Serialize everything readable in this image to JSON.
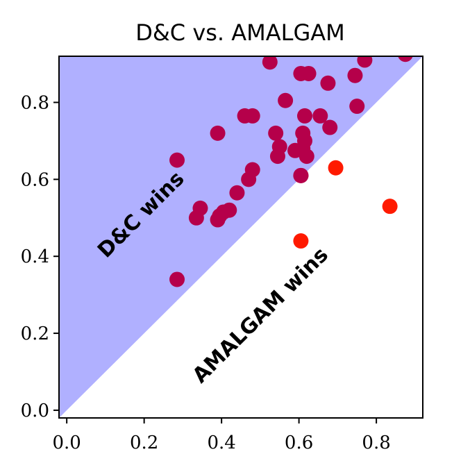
{
  "chart_data": {
    "type": "scatter",
    "title": "D&C vs. AMALGAM",
    "xlabel": "",
    "ylabel": "",
    "xlim": [
      -0.02,
      0.92
    ],
    "ylim": [
      -0.02,
      0.92
    ],
    "xticks": [
      "0.0",
      "0.2",
      "0.4",
      "0.6",
      "0.8"
    ],
    "yticks": [
      "0.0",
      "0.2",
      "0.4",
      "0.6",
      "0.8"
    ],
    "grid": false,
    "region_labels": {
      "upper": "D&C wins",
      "lower": "AMALGAM wins"
    },
    "colors": {
      "upper_fill": "#b0b0ff",
      "upper_points": "#b5004a",
      "lower_points": "#ff1a00"
    },
    "points": [
      {
        "x": 0.285,
        "y": 0.34
      },
      {
        "x": 0.285,
        "y": 0.65
      },
      {
        "x": 0.335,
        "y": 0.5
      },
      {
        "x": 0.345,
        "y": 0.525
      },
      {
        "x": 0.39,
        "y": 0.495
      },
      {
        "x": 0.39,
        "y": 0.72
      },
      {
        "x": 0.395,
        "y": 0.505
      },
      {
        "x": 0.405,
        "y": 0.515
      },
      {
        "x": 0.42,
        "y": 0.52
      },
      {
        "x": 0.44,
        "y": 0.565
      },
      {
        "x": 0.46,
        "y": 0.765
      },
      {
        "x": 0.47,
        "y": 0.6
      },
      {
        "x": 0.48,
        "y": 0.625
      },
      {
        "x": 0.48,
        "y": 0.765
      },
      {
        "x": 0.525,
        "y": 0.905
      },
      {
        "x": 0.54,
        "y": 0.72
      },
      {
        "x": 0.545,
        "y": 0.66
      },
      {
        "x": 0.55,
        "y": 0.685
      },
      {
        "x": 0.565,
        "y": 0.805
      },
      {
        "x": 0.59,
        "y": 0.675
      },
      {
        "x": 0.605,
        "y": 0.61
      },
      {
        "x": 0.605,
        "y": 0.875
      },
      {
        "x": 0.61,
        "y": 0.68
      },
      {
        "x": 0.61,
        "y": 0.72
      },
      {
        "x": 0.615,
        "y": 0.7
      },
      {
        "x": 0.615,
        "y": 0.765
      },
      {
        "x": 0.62,
        "y": 0.66
      },
      {
        "x": 0.625,
        "y": 0.875
      },
      {
        "x": 0.655,
        "y": 0.765
      },
      {
        "x": 0.675,
        "y": 0.85
      },
      {
        "x": 0.68,
        "y": 0.735
      },
      {
        "x": 0.745,
        "y": 0.87
      },
      {
        "x": 0.75,
        "y": 0.79
      },
      {
        "x": 0.77,
        "y": 0.91
      },
      {
        "x": 0.875,
        "y": 0.925
      },
      {
        "x": 0.605,
        "y": 0.44
      },
      {
        "x": 0.605,
        "y": 0.61
      },
      {
        "x": 0.695,
        "y": 0.63
      },
      {
        "x": 0.835,
        "y": 0.53
      }
    ]
  }
}
